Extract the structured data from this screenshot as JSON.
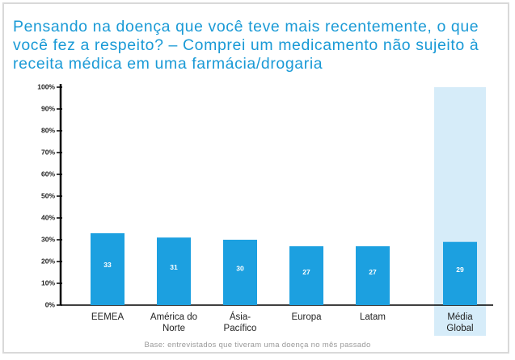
{
  "chart_data": {
    "type": "bar",
    "title": "Pensando na doença que você teve mais recentemente, o que você fez a respeito? – Comprei um medicamento não sujeito à receita médica em uma farmácia/drogaria",
    "categories": [
      "EEMEA",
      "América do Norte",
      "Ásia-Pacífico",
      "Europa",
      "Latam",
      "Média Global"
    ],
    "values": [
      33,
      31,
      30,
      27,
      27,
      29
    ],
    "color": "#1ca0e0",
    "ylim": [
      0,
      100
    ],
    "yticks": [
      {
        "value": 0,
        "label": "0%"
      },
      {
        "value": 10,
        "label": "10%"
      },
      {
        "value": 20,
        "label": "20%"
      },
      {
        "value": 30,
        "label": "30%"
      },
      {
        "value": 40,
        "label": "40%"
      },
      {
        "value": 50,
        "label": "50%"
      },
      {
        "value": 60,
        "label": "60%"
      },
      {
        "value": 70,
        "label": "70%"
      },
      {
        "value": 80,
        "label": "80%"
      },
      {
        "value": 90,
        "label": "90%"
      },
      {
        "value": 100,
        "label": "100%"
      }
    ],
    "footnote": "Base: entrevistados que tiveram uma doença no mês passado"
  }
}
